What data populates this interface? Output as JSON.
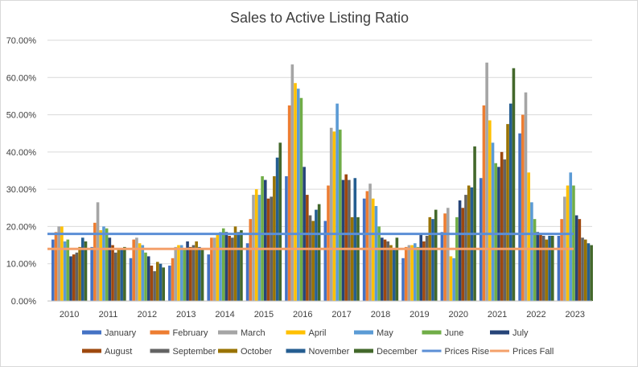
{
  "chart_data": {
    "type": "bar",
    "title": "Sales to Active Listing Ratio",
    "xlabel": "",
    "ylabel": "",
    "ylim": [
      0,
      0.7
    ],
    "yticks": [
      "0.00%",
      "10.00%",
      "20.00%",
      "30.00%",
      "40.00%",
      "50.00%",
      "60.00%",
      "70.00%"
    ],
    "grid": true,
    "legend_position": "bottom",
    "categories": [
      "2010",
      "2011",
      "2012",
      "2013",
      "2014",
      "2015",
      "2016",
      "2017",
      "2018",
      "2019",
      "2020",
      "2021",
      "2022",
      "2023"
    ],
    "series": [
      {
        "name": "January",
        "color": "#4472c4",
        "values": [
          0.165,
          0.145,
          0.115,
          0.095,
          0.125,
          0.155,
          0.335,
          0.215,
          0.275,
          0.115,
          0.185,
          0.33,
          0.45,
          0.175
        ]
      },
      {
        "name": "February",
        "color": "#ed7d31",
        "values": [
          0.185,
          0.21,
          0.165,
          0.115,
          0.17,
          0.22,
          0.525,
          0.31,
          0.295,
          0.145,
          0.235,
          0.525,
          0.5,
          0.22
        ]
      },
      {
        "name": "March",
        "color": "#a5a5a5",
        "values": [
          0.2,
          0.265,
          0.17,
          0.145,
          0.17,
          0.285,
          0.635,
          0.465,
          0.315,
          0.15,
          0.25,
          0.64,
          0.56,
          0.28
        ]
      },
      {
        "name": "April",
        "color": "#ffc000",
        "values": [
          0.2,
          0.19,
          0.155,
          0.15,
          0.18,
          0.3,
          0.585,
          0.455,
          0.275,
          0.15,
          0.12,
          0.485,
          0.345,
          0.31
        ]
      },
      {
        "name": "May",
        "color": "#5b9bd5",
        "values": [
          0.16,
          0.2,
          0.15,
          0.15,
          0.185,
          0.285,
          0.57,
          0.53,
          0.255,
          0.155,
          0.115,
          0.425,
          0.265,
          0.345
        ]
      },
      {
        "name": "June",
        "color": "#70ad47",
        "values": [
          0.165,
          0.195,
          0.13,
          0.14,
          0.195,
          0.335,
          0.545,
          0.46,
          0.2,
          0.145,
          0.225,
          0.37,
          0.22,
          0.31
        ]
      },
      {
        "name": "July",
        "color": "#264478",
        "values": [
          0.12,
          0.17,
          0.12,
          0.16,
          0.185,
          0.325,
          0.36,
          0.325,
          0.17,
          0.18,
          0.27,
          0.36,
          0.185,
          0.23
        ]
      },
      {
        "name": "August",
        "color": "#9e480e",
        "values": [
          0.125,
          0.15,
          0.095,
          0.145,
          0.175,
          0.275,
          0.285,
          0.34,
          0.165,
          0.16,
          0.25,
          0.4,
          0.18,
          0.22
        ]
      },
      {
        "name": "September",
        "color": "#636363",
        "values": [
          0.13,
          0.13,
          0.08,
          0.15,
          0.17,
          0.28,
          0.23,
          0.325,
          0.16,
          0.175,
          0.285,
          0.38,
          0.175,
          0.17
        ]
      },
      {
        "name": "October",
        "color": "#997300",
        "values": [
          0.145,
          0.14,
          0.105,
          0.16,
          0.2,
          0.335,
          0.215,
          0.225,
          0.15,
          0.225,
          0.31,
          0.475,
          0.165,
          0.165
        ]
      },
      {
        "name": "November",
        "color": "#255e91",
        "values": [
          0.17,
          0.14,
          0.1,
          0.145,
          0.185,
          0.385,
          0.245,
          0.33,
          0.14,
          0.22,
          0.305,
          0.53,
          0.175,
          0.155
        ]
      },
      {
        "name": "December",
        "color": "#43682b",
        "values": [
          0.16,
          0.145,
          0.09,
          0.14,
          0.19,
          0.425,
          0.26,
          0.225,
          0.17,
          0.245,
          0.415,
          0.625,
          0.175,
          0.15
        ]
      }
    ],
    "reference_lines": [
      {
        "name": "Prices Rise",
        "color": "#5b8fd6",
        "value": 0.18
      },
      {
        "name": "Prices Fall",
        "color": "#f4a06a",
        "value": 0.14
      }
    ]
  }
}
